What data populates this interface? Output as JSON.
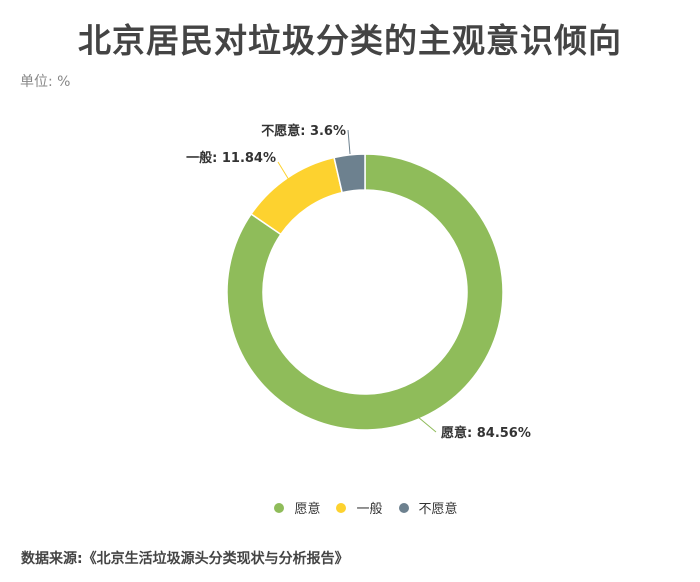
{
  "chart_data": {
    "type": "pie",
    "donut": true,
    "title": "北京居民对垃圾分类的主观意识倾向",
    "subtitle": "单位: %",
    "categories": [
      "愿意",
      "一般",
      "不愿意"
    ],
    "values": [
      84.56,
      11.84,
      3.6
    ],
    "colors": [
      "#8fbc5a",
      "#fdd22f",
      "#6d818f"
    ],
    "data_labels": [
      "愿意: 84.56%",
      "一般: 11.84%",
      "不愿意: 3.6%"
    ],
    "legend_placement": "bottom",
    "source": "数据来源:《北京生活垃圾源头分类现状与分析报告》"
  }
}
